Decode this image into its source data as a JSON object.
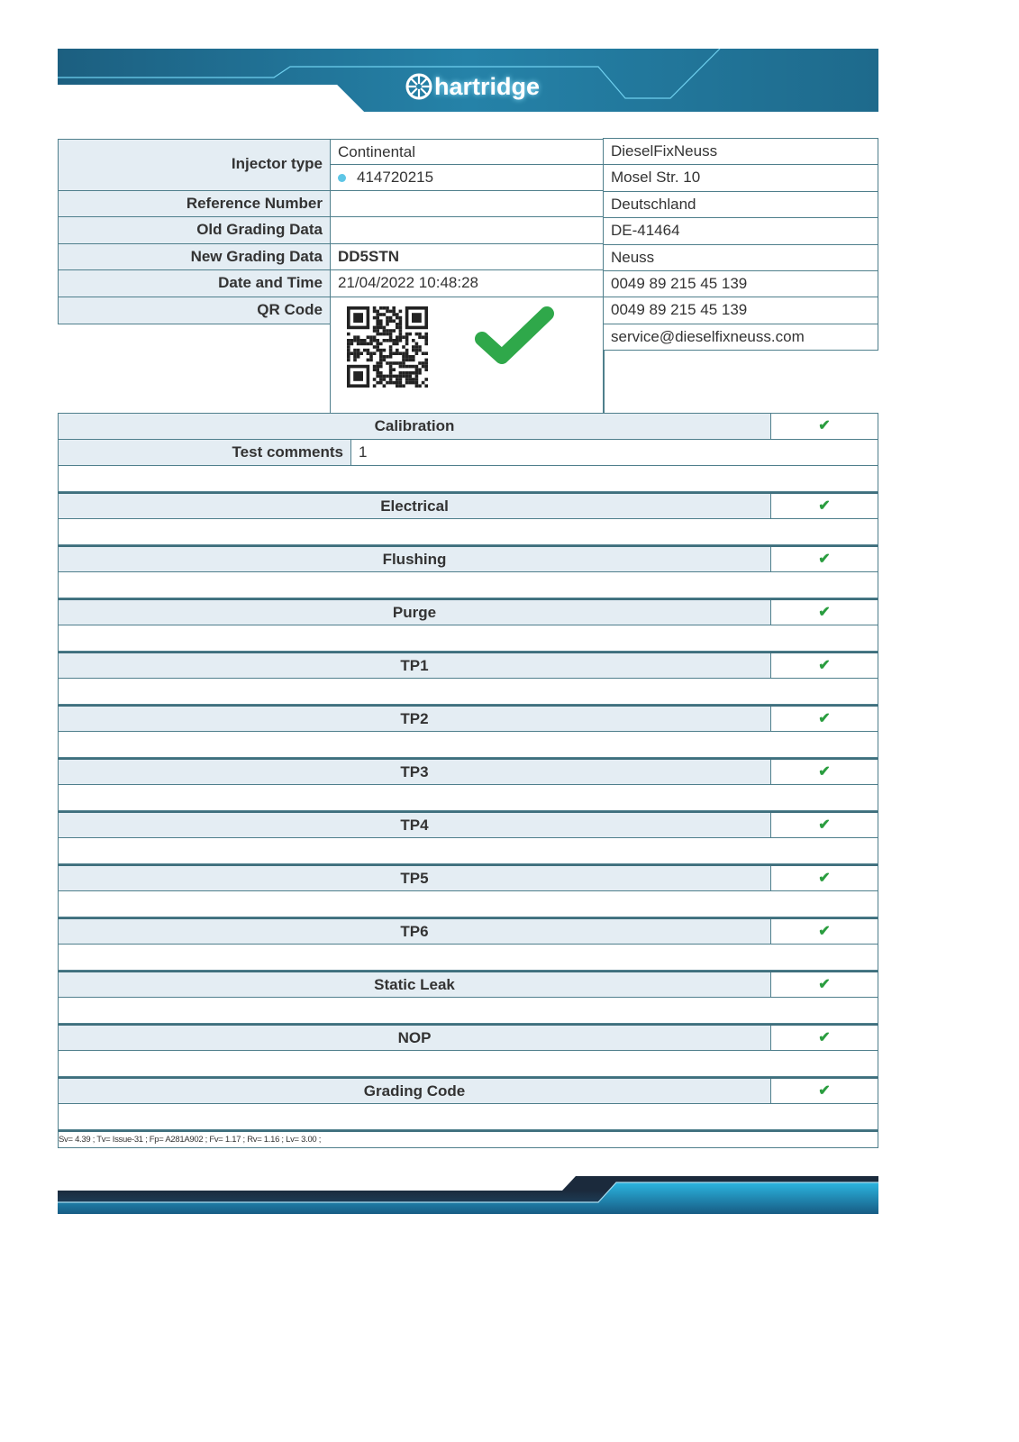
{
  "brand": {
    "logo_text": "hartridge",
    "colors": {
      "band": "#1f6f93",
      "band_dark": "#1b2a3c",
      "accent": "#2bb5e0",
      "check": "#2a9d3f",
      "label_bg": "#e4edf3",
      "border": "#4f7f8c"
    }
  },
  "info": {
    "labels": {
      "injector_type": "Injector type",
      "reference_number": "Reference Number",
      "old_grading": "Old Grading Data",
      "new_grading": "New Grading Data",
      "date_time": "Date and Time",
      "qr_code": "QR Code"
    },
    "injector_make": "Continental",
    "injector_part": "414720215",
    "reference_number": "",
    "old_grading": "",
    "new_grading": "DD5STN",
    "date_time": "21/04/2022 10:48:28",
    "overall_result": "pass"
  },
  "company": {
    "lines": [
      "DieselFixNeuss",
      "Mosel Str. 10",
      "Deutschland",
      "DE-41464",
      "Neuss",
      "0049 89 215 45 139",
      "0049 89 215 45 139",
      "service@dieselfixneuss.com"
    ]
  },
  "sections": {
    "test_comments_label": "Test comments",
    "test_comments_value": "1",
    "check_glyph": "✔",
    "items": [
      {
        "title": "Calibration",
        "status": "pass"
      },
      {
        "title": "Electrical",
        "status": "pass"
      },
      {
        "title": "Flushing",
        "status": "pass"
      },
      {
        "title": "Purge",
        "status": "pass"
      },
      {
        "title": "TP1",
        "status": "pass"
      },
      {
        "title": "TP2",
        "status": "pass"
      },
      {
        "title": "TP3",
        "status": "pass"
      },
      {
        "title": "TP4",
        "status": "pass"
      },
      {
        "title": "TP5",
        "status": "pass"
      },
      {
        "title": "TP6",
        "status": "pass"
      },
      {
        "title": "Static Leak",
        "status": "pass"
      },
      {
        "title": "NOP",
        "status": "pass"
      },
      {
        "title": "Grading Code",
        "status": "pass"
      }
    ]
  },
  "footer_versions": "Sv= 4.39 ; Tv= Issue-31 ; Fp= A281A902 ; Fv= 1.17 ; Rv= 1.16 ; Lv= 3.00 ;"
}
